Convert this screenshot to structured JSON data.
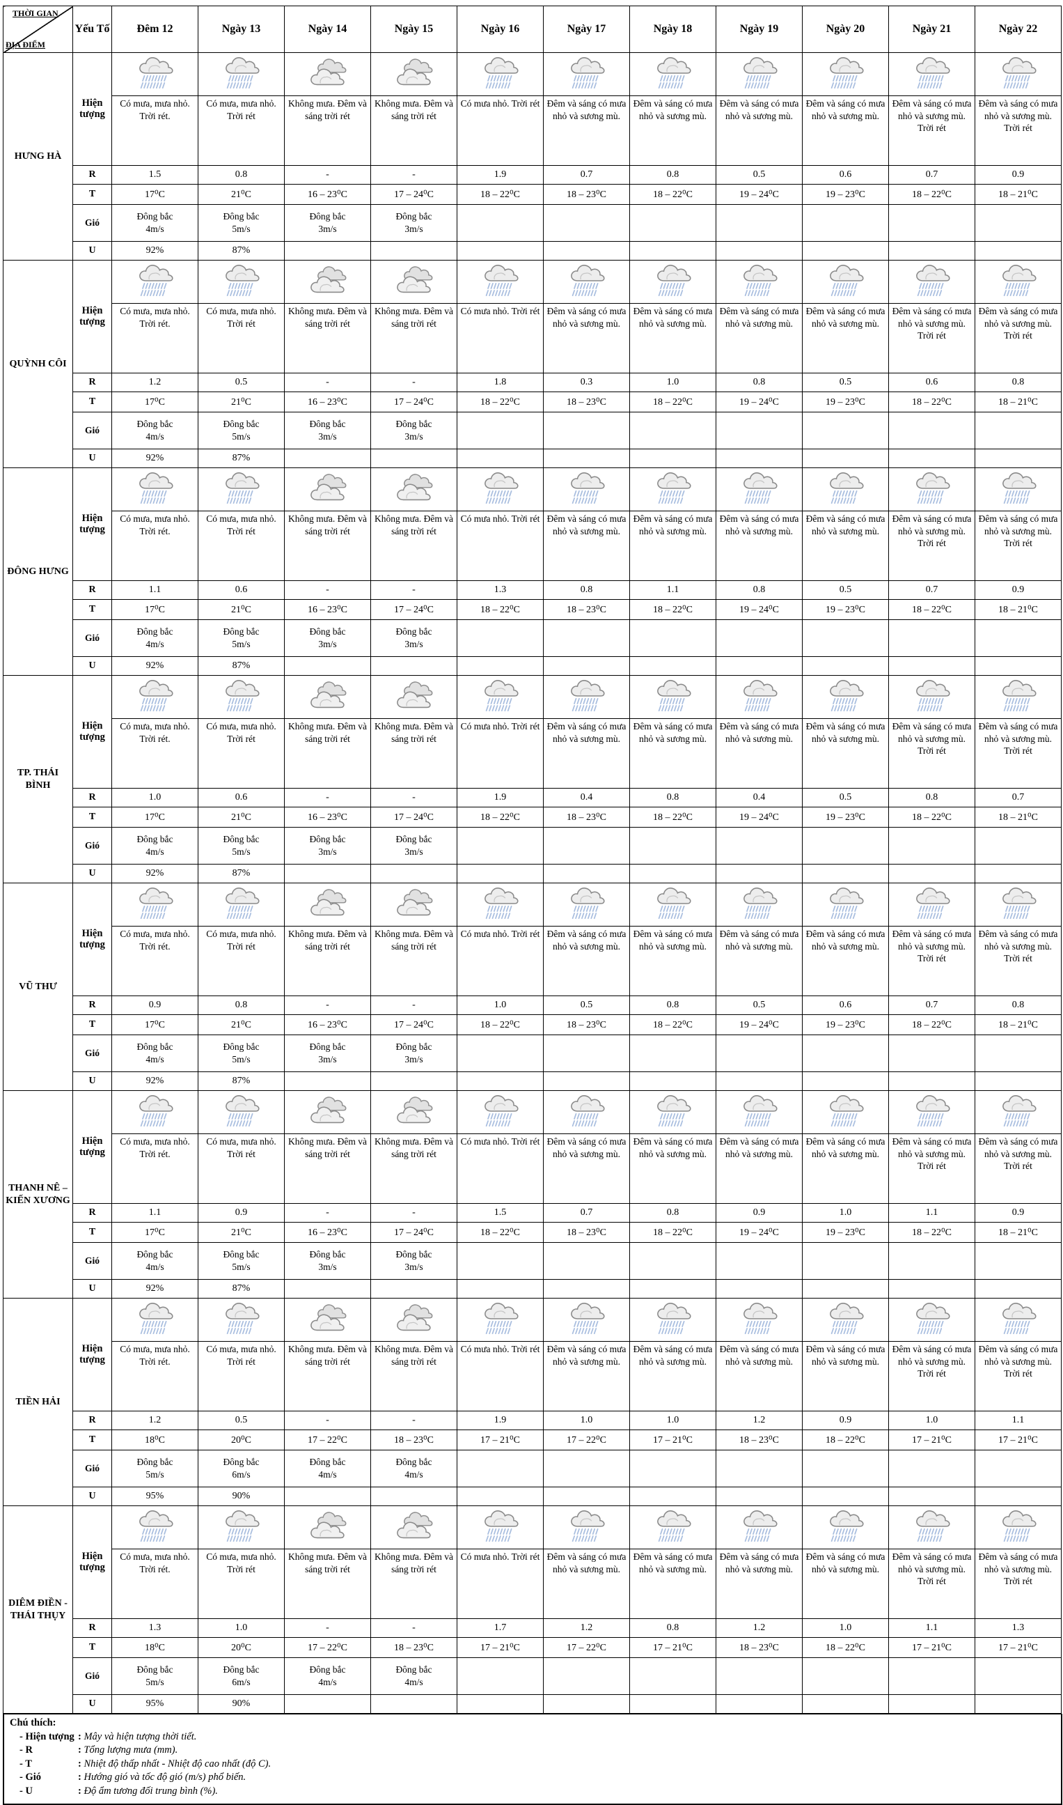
{
  "header": {
    "corner_top": "THỜI GIAN",
    "corner_bottom": "ĐỊA ĐIỂM",
    "factor_col": "Yếu Tố",
    "days": [
      "Đêm 12",
      "Ngày 13",
      "Ngày 14",
      "Ngày 15",
      "Ngày 16",
      "Ngày 17",
      "Ngày 18",
      "Ngày 19",
      "Ngày 20",
      "Ngày 21",
      "Ngày 22"
    ]
  },
  "row_labels": {
    "phenomenon": "Hiện tượng",
    "rain": "R",
    "temp": "T",
    "wind": "Gió",
    "humidity": "U"
  },
  "icons": [
    "rain",
    "rain",
    "cloud",
    "cloud",
    "rain",
    "rain",
    "rain",
    "rain",
    "rain",
    "rain",
    "rain"
  ],
  "phenomena": [
    "Có mưa, mưa nhỏ. Trời rét.",
    "Có mưa, mưa nhỏ. Trời rét",
    "Không mưa. Đêm và sáng trời rét",
    "Không mưa. Đêm và sáng trời rét",
    "Có mưa nhỏ. Trời rét",
    "Đêm và sáng có mưa nhỏ và sương mù.",
    "Đêm và sáng có mưa nhỏ và sương mù.",
    "Đêm và sáng có mưa nhỏ và sương mù.",
    "Đêm và sáng có mưa nhỏ và sương mù.",
    "Đêm và sáng có mưa nhỏ và sương mù. Trời rét",
    "Đêm và sáng có mưa nhỏ và sương mù. Trời rét"
  ],
  "locations": [
    {
      "name": "HƯNG HÀ",
      "R": [
        "1.5",
        "0.8",
        "-",
        "-",
        "1.9",
        "0.7",
        "0.8",
        "0.5",
        "0.6",
        "0.7",
        "0.9"
      ],
      "T": [
        "17⁰C",
        "21⁰C",
        "16 – 23⁰C",
        "17 – 24⁰C",
        "18 – 22⁰C",
        "18 – 23⁰C",
        "18 – 22⁰C",
        "19 – 24⁰C",
        "19 – 23⁰C",
        "18 – 22⁰C",
        "18 – 21⁰C"
      ],
      "wind": [
        {
          "dir": "Đông bắc",
          "speed": "4m/s"
        },
        {
          "dir": "Đông bắc",
          "speed": "5m/s"
        },
        {
          "dir": "Đông bắc",
          "speed": "3m/s"
        },
        {
          "dir": "Đông bắc",
          "speed": "3m/s"
        },
        null,
        null,
        null,
        null,
        null,
        null,
        null
      ],
      "U": [
        "92%",
        "87%",
        "",
        "",
        "",
        "",
        "",
        "",
        "",
        "",
        ""
      ]
    },
    {
      "name": "QUỲNH CÔI",
      "R": [
        "1.2",
        "0.5",
        "-",
        "-",
        "1.8",
        "0.3",
        "1.0",
        "0.8",
        "0.5",
        "0.6",
        "0.8"
      ],
      "T": [
        "17⁰C",
        "21⁰C",
        "16 – 23⁰C",
        "17 – 24⁰C",
        "18 – 22⁰C",
        "18 – 23⁰C",
        "18 – 22⁰C",
        "19 – 24⁰C",
        "19 – 23⁰C",
        "18 – 22⁰C",
        "18 – 21⁰C"
      ],
      "wind": [
        {
          "dir": "Đông bắc",
          "speed": "4m/s"
        },
        {
          "dir": "Đông bắc",
          "speed": "5m/s"
        },
        {
          "dir": "Đông bắc",
          "speed": "3m/s"
        },
        {
          "dir": "Đông bắc",
          "speed": "3m/s"
        },
        null,
        null,
        null,
        null,
        null,
        null,
        null
      ],
      "U": [
        "92%",
        "87%",
        "",
        "",
        "",
        "",
        "",
        "",
        "",
        "",
        ""
      ]
    },
    {
      "name": "ĐÔNG HƯNG",
      "R": [
        "1.1",
        "0.6",
        "-",
        "-",
        "1.3",
        "0.8",
        "1.1",
        "0.8",
        "0.5",
        "0.7",
        "0.9"
      ],
      "T": [
        "17⁰C",
        "21⁰C",
        "16 – 23⁰C",
        "17 – 24⁰C",
        "18 – 22⁰C",
        "18 – 23⁰C",
        "18 – 22⁰C",
        "19 – 24⁰C",
        "19 – 23⁰C",
        "18 – 22⁰C",
        "18 – 21⁰C"
      ],
      "wind": [
        {
          "dir": "Đông bắc",
          "speed": "4m/s"
        },
        {
          "dir": "Đông bắc",
          "speed": "5m/s"
        },
        {
          "dir": "Đông bắc",
          "speed": "3m/s"
        },
        {
          "dir": "Đông bắc",
          "speed": "3m/s"
        },
        null,
        null,
        null,
        null,
        null,
        null,
        null
      ],
      "U": [
        "92%",
        "87%",
        "",
        "",
        "",
        "",
        "",
        "",
        "",
        "",
        ""
      ]
    },
    {
      "name": "TP. THÁI BÌNH",
      "R": [
        "1.0",
        "0.6",
        "-",
        "-",
        "1.9",
        "0.4",
        "0.8",
        "0.4",
        "0.5",
        "0.8",
        "0.7"
      ],
      "T": [
        "17⁰C",
        "21⁰C",
        "16 – 23⁰C",
        "17 – 24⁰C",
        "18 – 22⁰C",
        "18 – 23⁰C",
        "18 – 22⁰C",
        "19 – 24⁰C",
        "19 – 23⁰C",
        "18 – 22⁰C",
        "18 – 21⁰C"
      ],
      "wind": [
        {
          "dir": "Đông bắc",
          "speed": "4m/s"
        },
        {
          "dir": "Đông bắc",
          "speed": "5m/s"
        },
        {
          "dir": "Đông bắc",
          "speed": "3m/s"
        },
        {
          "dir": "Đông bắc",
          "speed": "3m/s"
        },
        null,
        null,
        null,
        null,
        null,
        null,
        null
      ],
      "U": [
        "92%",
        "87%",
        "",
        "",
        "",
        "",
        "",
        "",
        "",
        "",
        ""
      ]
    },
    {
      "name": "VŨ THƯ",
      "R": [
        "0.9",
        "0.8",
        "-",
        "-",
        "1.0",
        "0.5",
        "0.8",
        "0.5",
        "0.6",
        "0.7",
        "0.8"
      ],
      "T": [
        "17⁰C",
        "21⁰C",
        "16 – 23⁰C",
        "17 – 24⁰C",
        "18 – 22⁰C",
        "18 – 23⁰C",
        "18 – 22⁰C",
        "19 – 24⁰C",
        "19 – 23⁰C",
        "18 – 22⁰C",
        "18 – 21⁰C"
      ],
      "wind": [
        {
          "dir": "Đông bắc",
          "speed": "4m/s"
        },
        {
          "dir": "Đông bắc",
          "speed": "5m/s"
        },
        {
          "dir": "Đông bắc",
          "speed": "3m/s"
        },
        {
          "dir": "Đông bắc",
          "speed": "3m/s"
        },
        null,
        null,
        null,
        null,
        null,
        null,
        null
      ],
      "U": [
        "92%",
        "87%",
        "",
        "",
        "",
        "",
        "",
        "",
        "",
        "",
        ""
      ]
    },
    {
      "name": "THANH NÊ – KIẾN XƯƠNG",
      "R": [
        "1.1",
        "0.9",
        "-",
        "-",
        "1.5",
        "0.7",
        "0.8",
        "0.9",
        "1.0",
        "1.1",
        "0.9"
      ],
      "T": [
        "17⁰C",
        "21⁰C",
        "16 – 23⁰C",
        "17 – 24⁰C",
        "18 – 22⁰C",
        "18 – 23⁰C",
        "18 – 22⁰C",
        "19 – 24⁰C",
        "19 – 23⁰C",
        "18 – 22⁰C",
        "18 – 21⁰C"
      ],
      "wind": [
        {
          "dir": "Đông bắc",
          "speed": "4m/s"
        },
        {
          "dir": "Đông bắc",
          "speed": "5m/s"
        },
        {
          "dir": "Đông bắc",
          "speed": "3m/s"
        },
        {
          "dir": "Đông bắc",
          "speed": "3m/s"
        },
        null,
        null,
        null,
        null,
        null,
        null,
        null
      ],
      "U": [
        "92%",
        "87%",
        "",
        "",
        "",
        "",
        "",
        "",
        "",
        "",
        ""
      ]
    },
    {
      "name": "TIỀN HẢI",
      "R": [
        "1.2",
        "0.5",
        "-",
        "-",
        "1.9",
        "1.0",
        "1.0",
        "1.2",
        "0.9",
        "1.0",
        "1.1"
      ],
      "T": [
        "18⁰C",
        "20⁰C",
        "17 – 22⁰C",
        "18 – 23⁰C",
        "17 – 21⁰C",
        "17 – 22⁰C",
        "17 – 21⁰C",
        "18 – 23⁰C",
        "18 – 22⁰C",
        "17 – 21⁰C",
        "17 – 21⁰C"
      ],
      "wind": [
        {
          "dir": "Đông bắc",
          "speed": "5m/s"
        },
        {
          "dir": "Đông bắc",
          "speed": "6m/s"
        },
        {
          "dir": "Đông bắc",
          "speed": "4m/s"
        },
        {
          "dir": "Đông bắc",
          "speed": "4m/s"
        },
        null,
        null,
        null,
        null,
        null,
        null,
        null
      ],
      "U": [
        "95%",
        "90%",
        "",
        "",
        "",
        "",
        "",
        "",
        "",
        "",
        ""
      ]
    },
    {
      "name": "DIÊM ĐIỀN - THÁI THỤY",
      "R": [
        "1.3",
        "1.0",
        "-",
        "-",
        "1.7",
        "1.2",
        "0.8",
        "1.2",
        "1.0",
        "1.1",
        "1.3"
      ],
      "T": [
        "18⁰C",
        "20⁰C",
        "17 – 22⁰C",
        "18 – 23⁰C",
        "17 – 21⁰C",
        "17 – 22⁰C",
        "17 – 21⁰C",
        "18 – 23⁰C",
        "18 – 22⁰C",
        "17 – 21⁰C",
        "17 – 21⁰C"
      ],
      "wind": [
        {
          "dir": "Đông bắc",
          "speed": "5m/s"
        },
        {
          "dir": "Đông bắc",
          "speed": "6m/s"
        },
        {
          "dir": "Đông bắc",
          "speed": "4m/s"
        },
        {
          "dir": "Đông bắc",
          "speed": "4m/s"
        },
        null,
        null,
        null,
        null,
        null,
        null,
        null
      ],
      "U": [
        "95%",
        "90%",
        "",
        "",
        "",
        "",
        "",
        "",
        "",
        "",
        ""
      ]
    }
  ],
  "legend": {
    "title": "Chú thích:",
    "colon": ":",
    "items": [
      {
        "label": "- Hiện tượng",
        "desc": "Mây và hiện tượng thời tiết."
      },
      {
        "label": "- R",
        "desc": "Tổng lượng mưa (mm)."
      },
      {
        "label": "- T",
        "desc": "Nhiệt độ thấp nhất - Nhiệt độ cao nhất (độ C)."
      },
      {
        "label": "- Gió",
        "desc": "Hướng gió và tốc độ gió (m/s) phổ biến."
      },
      {
        "label": "- U",
        "desc": "Độ ẩm tương đối trung bình (%)."
      }
    ]
  }
}
